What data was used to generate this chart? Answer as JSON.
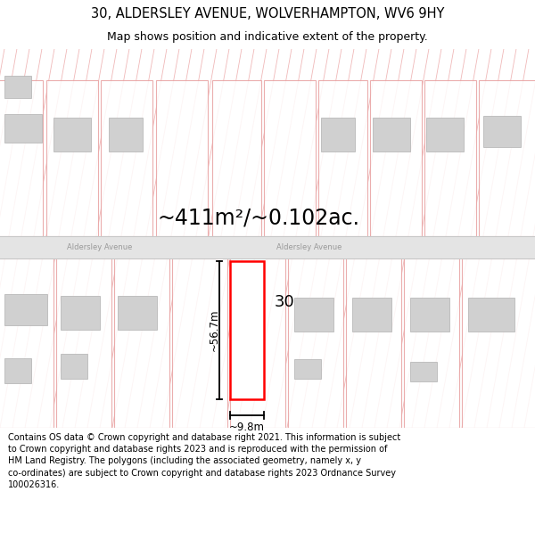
{
  "title_line1": "30, ALDERSLEY AVENUE, WOLVERHAMPTON, WV6 9HY",
  "title_line2": "Map shows position and indicative extent of the property.",
  "footer": "Contains OS data © Crown copyright and database right 2021. This information is subject\nto Crown copyright and database rights 2023 and is reproduced with the permission of\nHM Land Registry. The polygons (including the associated geometry, namely x, y\nco-ordinates) are subject to Crown copyright and database rights 2023 Ordnance Survey\n100026316.",
  "area_label": "~411m²/~0.102ac.",
  "street_name": "Aldersley Avenue",
  "plot_number": "30",
  "dim_height": "~56.7m",
  "dim_width": "~9.8m",
  "bg_color": "#ffffff",
  "hatch_color": "#f0b8b8",
  "road_color": "#e8e8e8",
  "plot_rect_color": "#ff0000",
  "map_bg": "#ffffff"
}
